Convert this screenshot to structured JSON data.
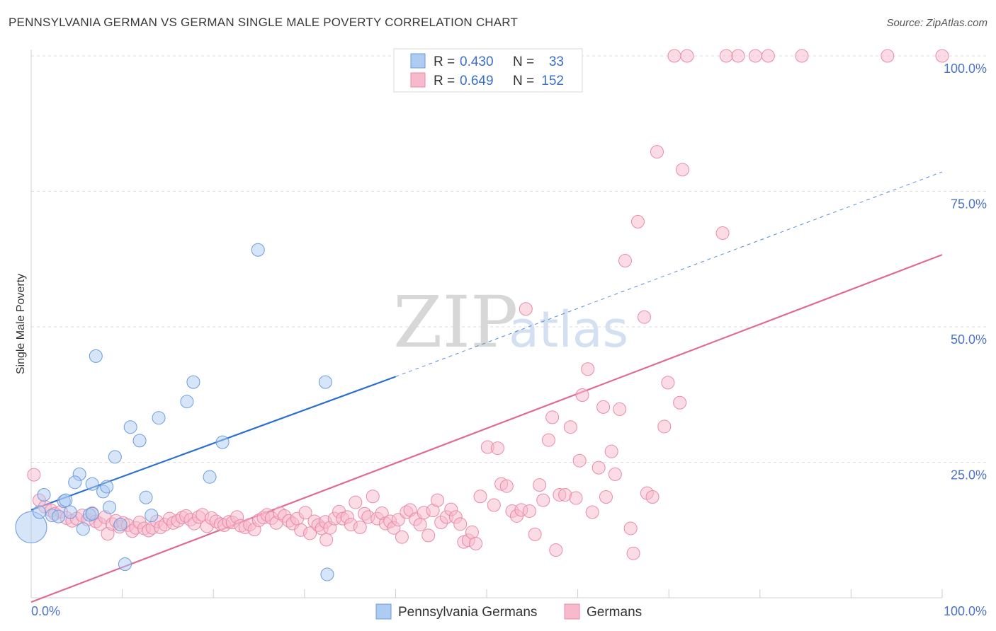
{
  "title": "PENNSYLVANIA GERMAN VS GERMAN SINGLE MALE POVERTY CORRELATION CHART",
  "source": "Source: ZipAtlas.com",
  "watermark": {
    "part1": "ZIP",
    "part2": "atlas"
  },
  "colors": {
    "blue_fill": "#aecbf2",
    "blue_stroke": "#6c9be0",
    "blue_line": "#2b6fd0",
    "pink_fill": "#f7b9cc",
    "pink_stroke": "#e98aa9",
    "pink_line": "#e06a95"
  },
  "legend": {
    "rows": [
      {
        "r_label": "R = ",
        "r_value": "0.430",
        "n_label": "N = ",
        "n_value": "33"
      },
      {
        "r_label": "R = ",
        "r_value": "0.649",
        "n_label": "N = ",
        "n_value": "152"
      }
    ]
  },
  "chart_data": {
    "type": "scatter",
    "ylabel": "Single Male Poverty",
    "xlim": [
      0,
      100
    ],
    "ylim": [
      0,
      100
    ],
    "x_tick_labels": [
      "0.0%",
      "100.0%"
    ],
    "y_tick_labels": [
      "25.0%",
      "50.0%",
      "75.0%",
      "100.0%"
    ],
    "y_ticks": [
      25,
      50,
      75,
      100
    ],
    "grid": "horizontal dashed",
    "series": [
      {
        "name": "Pennsylvania Germans",
        "color": "blue",
        "trend": {
          "x0": 0,
          "y0": 16.2,
          "x1": 40,
          "y1": 40.8,
          "dashed_to_x": 100,
          "dashed_to_y": 78.6
        },
        "points": [
          [
            0,
            13,
            22
          ],
          [
            1.4,
            19,
            9
          ],
          [
            0.9,
            15.8,
            9
          ],
          [
            2.3,
            15.2,
            9
          ],
          [
            3.0,
            15,
            9
          ],
          [
            3.6,
            17.8,
            9
          ],
          [
            3.8,
            18,
            9
          ],
          [
            4.3,
            15.8,
            9
          ],
          [
            5.3,
            22.8,
            9
          ],
          [
            5.7,
            12.7,
            9
          ],
          [
            4.8,
            21.3,
            9
          ],
          [
            6.4,
            15.3,
            9
          ],
          [
            6.7,
            15.5,
            9
          ],
          [
            6.7,
            21,
            9
          ],
          [
            7.1,
            44.6,
            9
          ],
          [
            7.9,
            19.6,
            9
          ],
          [
            8.3,
            20.5,
            9
          ],
          [
            8.6,
            16.7,
            9
          ],
          [
            9.2,
            26,
            9
          ],
          [
            9.8,
            13.5,
            9
          ],
          [
            10.3,
            6.2,
            9
          ],
          [
            10.9,
            31.5,
            9
          ],
          [
            11.9,
            29,
            9
          ],
          [
            12.6,
            18.5,
            9
          ],
          [
            13.2,
            15.2,
            9
          ],
          [
            14.0,
            33.2,
            9
          ],
          [
            17.1,
            36.2,
            9
          ],
          [
            17.8,
            39.8,
            9
          ],
          [
            19.6,
            22.3,
            9
          ],
          [
            21.0,
            28.7,
            9
          ],
          [
            24.9,
            64.2,
            9
          ],
          [
            32.3,
            39.8,
            9
          ],
          [
            32.5,
            4.3,
            9
          ]
        ]
      },
      {
        "name": "Germans",
        "color": "pink",
        "trend": {
          "x0": 0,
          "y0": -0.8,
          "x1": 100,
          "y1": 63.3
        },
        "points": [
          [
            0.3,
            22.7,
            9
          ],
          [
            0.9,
            18,
            9
          ],
          [
            1.5,
            16.8,
            9
          ],
          [
            2.2,
            16.1,
            9
          ],
          [
            2.6,
            15.5,
            9
          ],
          [
            3.3,
            15.9,
            9
          ],
          [
            3.9,
            14.7,
            9
          ],
          [
            4.5,
            14.2,
            9
          ],
          [
            5.0,
            14.6,
            9
          ],
          [
            5.6,
            15.2,
            9
          ],
          [
            6.2,
            14.4,
            9
          ],
          [
            6.7,
            15.6,
            9
          ],
          [
            7.1,
            14.1,
            9
          ],
          [
            7.6,
            13.6,
            9
          ],
          [
            8.1,
            14.9,
            9
          ],
          [
            8.4,
            11.8,
            9
          ],
          [
            8.9,
            13.6,
            9
          ],
          [
            9.3,
            14.2,
            9
          ],
          [
            9.7,
            13.1,
            9
          ],
          [
            10.1,
            13.8,
            9
          ],
          [
            10.6,
            13.4,
            9
          ],
          [
            11.1,
            12.3,
            9
          ],
          [
            11.5,
            12.9,
            9
          ],
          [
            11.9,
            13.9,
            9
          ],
          [
            12.4,
            12.8,
            9
          ],
          [
            12.9,
            12.4,
            9
          ],
          [
            13.3,
            12.9,
            9
          ],
          [
            13.8,
            14.1,
            9
          ],
          [
            14.2,
            13.0,
            9
          ],
          [
            14.7,
            13.5,
            9
          ],
          [
            15.2,
            14.6,
            9
          ],
          [
            15.6,
            13.8,
            9
          ],
          [
            16.1,
            14.2,
            9
          ],
          [
            16.6,
            14.8,
            9
          ],
          [
            17.0,
            15.1,
            9
          ],
          [
            17.5,
            14.4,
            9
          ],
          [
            17.9,
            13.7,
            9
          ],
          [
            18.4,
            14.9,
            9
          ],
          [
            18.8,
            15.3,
            9
          ],
          [
            19.3,
            13.2,
            9
          ],
          [
            19.8,
            14.7,
            9
          ],
          [
            20.3,
            14.1,
            9
          ],
          [
            20.8,
            13.6,
            9
          ],
          [
            21.2,
            13.4,
            9
          ],
          [
            21.7,
            14.0,
            9
          ],
          [
            22.1,
            13.9,
            9
          ],
          [
            22.6,
            14.9,
            9
          ],
          [
            23.0,
            13.3,
            9
          ],
          [
            23.5,
            13.0,
            9
          ],
          [
            24.0,
            13.5,
            9
          ],
          [
            24.5,
            12.6,
            9
          ],
          [
            25.0,
            14.3,
            9
          ],
          [
            25.5,
            14.8,
            9
          ],
          [
            25.9,
            15.3,
            9
          ],
          [
            26.4,
            14.7,
            9
          ],
          [
            26.9,
            13.8,
            9
          ],
          [
            27.3,
            15.6,
            9
          ],
          [
            27.8,
            15.1,
            9
          ],
          [
            28.3,
            14.2,
            9
          ],
          [
            28.7,
            13.7,
            9
          ],
          [
            29.2,
            14.6,
            9
          ],
          [
            29.6,
            12.5,
            9
          ],
          [
            30.1,
            15.7,
            9
          ],
          [
            30.6,
            11.9,
            9
          ],
          [
            31.1,
            14.1,
            9
          ],
          [
            31.5,
            13.4,
            9
          ],
          [
            31.9,
            12.8,
            9
          ],
          [
            32.3,
            14.0,
            9
          ],
          [
            32.4,
            10.7,
            9
          ],
          [
            32.8,
            12.9,
            9
          ],
          [
            33.3,
            14.6,
            9
          ],
          [
            33.8,
            15.9,
            9
          ],
          [
            34.2,
            14.6,
            9
          ],
          [
            34.7,
            14.9,
            9
          ],
          [
            35.1,
            13.5,
            9
          ],
          [
            35.6,
            17.6,
            9
          ],
          [
            36.1,
            13.0,
            9
          ],
          [
            36.6,
            15.5,
            9
          ],
          [
            37.0,
            14.9,
            9
          ],
          [
            37.5,
            18.7,
            9
          ],
          [
            38.0,
            14.6,
            9
          ],
          [
            38.5,
            15.6,
            9
          ],
          [
            38.9,
            13.7,
            9
          ],
          [
            39.4,
            14.1,
            9
          ],
          [
            39.8,
            12.9,
            9
          ],
          [
            40.3,
            14.4,
            9
          ],
          [
            40.7,
            11.2,
            9
          ],
          [
            41.2,
            15.8,
            9
          ],
          [
            41.6,
            16.2,
            9
          ],
          [
            42.2,
            14.5,
            9
          ],
          [
            42.7,
            13.5,
            9
          ],
          [
            43.1,
            15.7,
            9
          ],
          [
            43.6,
            11.5,
            9
          ],
          [
            44.1,
            16.1,
            9
          ],
          [
            44.6,
            18.0,
            9
          ],
          [
            45.0,
            13.9,
            9
          ],
          [
            45.6,
            14.9,
            9
          ],
          [
            46.1,
            16.3,
            9
          ],
          [
            46.6,
            14.9,
            9
          ],
          [
            47.1,
            13.6,
            9
          ],
          [
            47.5,
            10.3,
            9
          ],
          [
            48.0,
            10.6,
            9
          ],
          [
            48.4,
            12.1,
            9
          ],
          [
            48.8,
            10.0,
            9
          ],
          [
            49.3,
            18.7,
            9
          ],
          [
            50.1,
            27.8,
            9
          ],
          [
            50.8,
            17.1,
            9
          ],
          [
            51.2,
            27.6,
            9
          ],
          [
            51.6,
            21.0,
            9
          ],
          [
            52.2,
            20.6,
            9
          ],
          [
            52.8,
            16.0,
            9
          ],
          [
            53.3,
            15.1,
            9
          ],
          [
            53.8,
            16.2,
            9
          ],
          [
            54.3,
            53.3,
            9
          ],
          [
            54.7,
            16.0,
            9
          ],
          [
            55.3,
            11.7,
            9
          ],
          [
            55.8,
            20.8,
            9
          ],
          [
            56.2,
            18.0,
            9
          ],
          [
            56.8,
            29.1,
            9
          ],
          [
            57.2,
            33.3,
            9
          ],
          [
            57.6,
            8.8,
            9
          ],
          [
            58.0,
            19.0,
            9
          ],
          [
            58.6,
            19.0,
            9
          ],
          [
            59.2,
            31.5,
            9
          ],
          [
            59.8,
            18.4,
            9
          ],
          [
            60.2,
            25.3,
            9
          ],
          [
            60.5,
            37.4,
            9
          ],
          [
            61.1,
            42.2,
            9
          ],
          [
            61.6,
            15.8,
            9
          ],
          [
            62.3,
            24.0,
            9
          ],
          [
            62.8,
            35.2,
            9
          ],
          [
            63.1,
            18.6,
            9
          ],
          [
            63.7,
            27.0,
            9
          ],
          [
            64.1,
            22.8,
            9
          ],
          [
            64.6,
            34.8,
            9
          ],
          [
            65.2,
            62.2,
            9
          ],
          [
            65.8,
            12.8,
            9
          ],
          [
            66.1,
            8.2,
            9
          ],
          [
            66.6,
            69.4,
            9
          ],
          [
            67.3,
            51.8,
            9
          ],
          [
            67.6,
            19.3,
            9
          ],
          [
            68.2,
            18.6,
            9
          ],
          [
            68.7,
            82.3,
            9
          ],
          [
            69.5,
            31.6,
            9
          ],
          [
            69.9,
            39.7,
            9
          ],
          [
            70.6,
            100,
            9
          ],
          [
            71.2,
            36.0,
            9
          ],
          [
            71.5,
            79.0,
            9
          ],
          [
            72.0,
            100,
            9
          ],
          [
            76.3,
            100,
            9
          ],
          [
            77.6,
            100,
            9
          ],
          [
            75.9,
            67.3,
            9
          ],
          [
            79.5,
            100,
            9
          ],
          [
            80.9,
            100,
            9
          ],
          [
            84.6,
            100,
            9
          ],
          [
            94.0,
            100,
            9
          ],
          [
            100,
            100,
            9
          ]
        ]
      }
    ]
  },
  "bottom_legend": {
    "items": [
      {
        "label": "Pennsylvania Germans",
        "color": "blue"
      },
      {
        "label": "Germans",
        "color": "pink"
      }
    ]
  }
}
